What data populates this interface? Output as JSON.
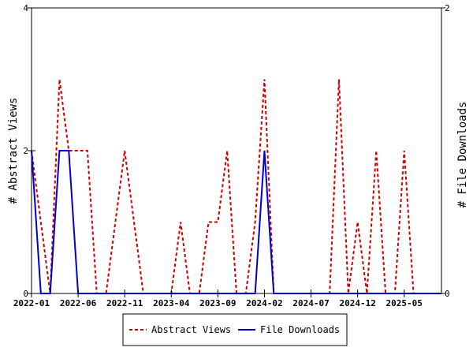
{
  "chart_data": {
    "type": "line",
    "title": "",
    "xlabel": "",
    "ylabel_left": "# Abstract Views",
    "ylabel_right": "# File Downloads",
    "ylim_left": [
      0,
      4
    ],
    "ylim_right": [
      0,
      2
    ],
    "yticks_left": [
      "0",
      "2",
      "4"
    ],
    "yticks_right": [
      "0",
      "2"
    ],
    "x_start": "2022-01",
    "x_end": "2025-09",
    "xticks": [
      "2022-01",
      "2022-06",
      "2022-11",
      "2023-04",
      "2023-09",
      "2024-02",
      "2024-07",
      "2024-12",
      "2025-05"
    ],
    "grid": false,
    "legend_position": "bottom-center",
    "series": [
      {
        "name": "Abstract Views",
        "axis": "left",
        "color": "#cc0000",
        "dash": "dashed",
        "x": [
          "2022-01",
          "2022-02",
          "2022-03",
          "2022-04",
          "2022-05",
          "2022-06",
          "2022-07",
          "2022-08",
          "2022-09",
          "2022-10",
          "2022-11",
          "2022-12",
          "2023-01",
          "2023-02",
          "2023-03",
          "2023-04",
          "2023-05",
          "2023-06",
          "2023-07",
          "2023-08",
          "2023-09",
          "2023-10",
          "2023-11",
          "2023-12",
          "2024-01",
          "2024-02",
          "2024-03",
          "2024-04",
          "2024-05",
          "2024-06",
          "2024-07",
          "2024-08",
          "2024-09",
          "2024-10",
          "2024-11",
          "2024-12",
          "2025-01",
          "2025-02",
          "2025-03",
          "2025-04",
          "2025-05",
          "2025-06",
          "2025-07",
          "2025-08",
          "2025-09"
        ],
        "values": [
          2,
          1,
          0,
          3,
          2,
          2,
          2,
          0,
          0,
          1,
          2,
          1,
          0,
          0,
          0,
          0,
          1,
          0,
          0,
          1,
          1,
          2,
          0,
          0,
          1,
          3,
          0,
          0,
          0,
          0,
          0,
          0,
          0,
          3,
          0,
          1,
          0,
          2,
          0,
          0,
          2,
          0,
          0,
          0,
          0
        ]
      },
      {
        "name": "File Downloads",
        "axis": "right",
        "color": "#0000cc",
        "dash": "solid",
        "x": [
          "2022-01",
          "2022-02",
          "2022-03",
          "2022-04",
          "2022-05",
          "2022-06",
          "2022-07",
          "2022-08",
          "2022-09",
          "2022-10",
          "2022-11",
          "2022-12",
          "2023-01",
          "2023-02",
          "2023-03",
          "2023-04",
          "2023-05",
          "2023-06",
          "2023-07",
          "2023-08",
          "2023-09",
          "2023-10",
          "2023-11",
          "2023-12",
          "2024-01",
          "2024-02",
          "2024-03",
          "2024-04",
          "2024-05",
          "2024-06",
          "2024-07",
          "2024-08",
          "2024-09",
          "2024-10",
          "2024-11",
          "2024-12",
          "2025-01",
          "2025-02",
          "2025-03",
          "2025-04",
          "2025-05",
          "2025-06",
          "2025-07",
          "2025-08",
          "2025-09"
        ],
        "values": [
          1,
          0,
          0,
          1,
          1,
          0,
          0,
          0,
          0,
          0,
          0,
          0,
          0,
          0,
          0,
          0,
          0,
          0,
          0,
          0,
          0,
          0,
          0,
          0,
          0,
          1,
          0,
          0,
          0,
          0,
          0,
          0,
          0,
          0,
          0,
          0,
          0,
          0,
          0,
          0,
          0,
          0,
          0,
          0,
          0
        ]
      }
    ]
  }
}
